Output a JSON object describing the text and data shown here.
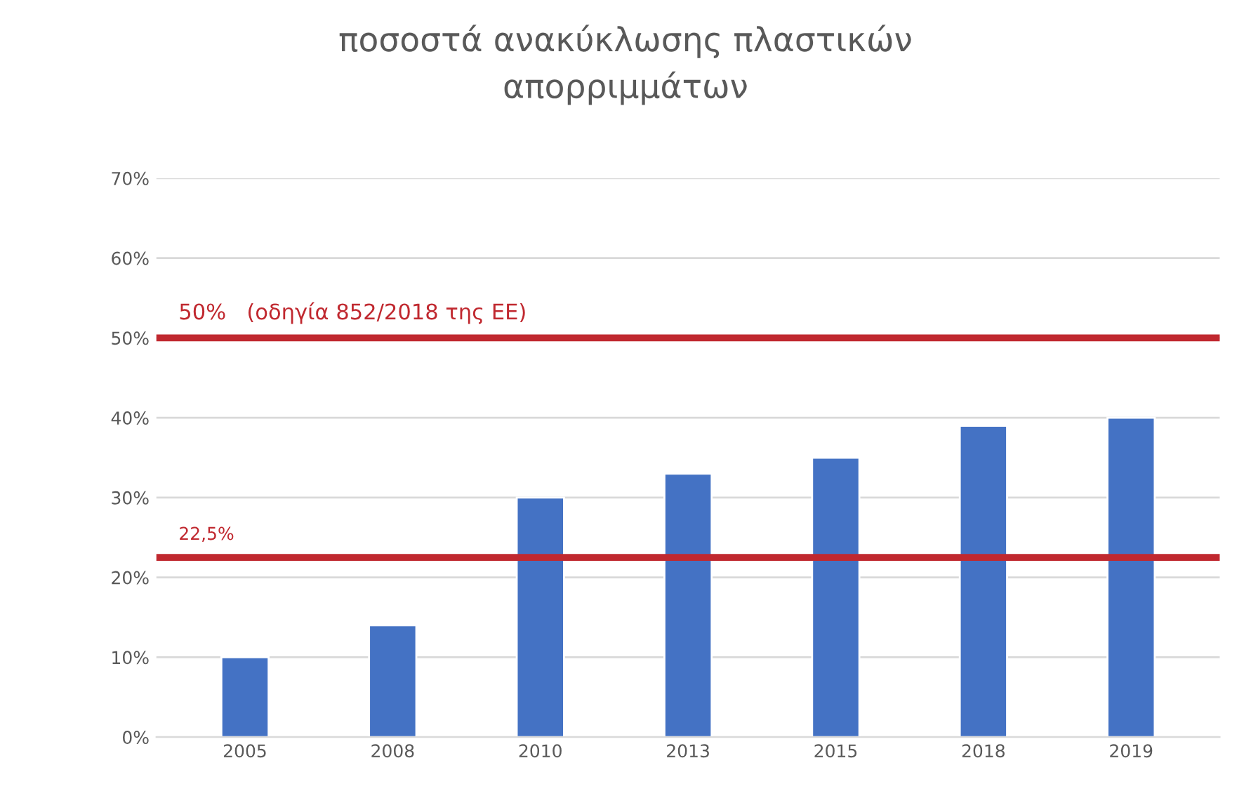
{
  "chart_data": {
    "type": "bar",
    "title": "ποσοστά ανακύκλωσης πλαστικών\nαπορριμμάτων",
    "categories": [
      "2005",
      "2008",
      "2010",
      "2013",
      "2015",
      "2018",
      "2019"
    ],
    "values": [
      10,
      14,
      30,
      33,
      35,
      39,
      40
    ],
    "color": "#4472c4",
    "ylim": [
      0,
      70
    ],
    "yticks": [
      {
        "value": 0,
        "label": "0%"
      },
      {
        "value": 10,
        "label": "10%"
      },
      {
        "value": 20,
        "label": "20%"
      },
      {
        "value": 30,
        "label": "30%"
      },
      {
        "value": 40,
        "label": "40%"
      },
      {
        "value": 50,
        "label": "50%"
      },
      {
        "value": 60,
        "label": "60%"
      },
      {
        "value": 70,
        "label": "70%"
      }
    ],
    "grid": "y",
    "ref_lines": [
      {
        "axis": "y",
        "value": 50,
        "label": "50%   (οδηγία 852/2018 της ΕΕ)",
        "color": "#c0282f"
      },
      {
        "axis": "y",
        "value": 22.5,
        "label": "22,5%",
        "color": "#c0282f"
      }
    ]
  }
}
